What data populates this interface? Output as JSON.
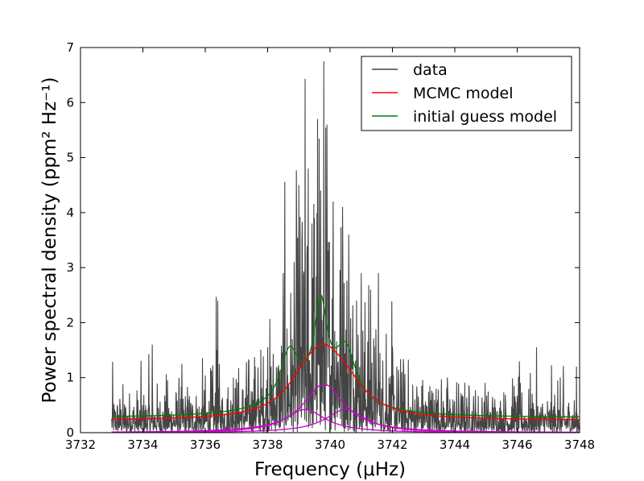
{
  "chart_data": {
    "type": "line",
    "xlabel": "Frequency (μHz)",
    "ylabel": "Power spectral density (ppm² Hz⁻¹)",
    "xlim": [
      3732,
      3748
    ],
    "ylim": [
      0,
      7
    ],
    "xticks": [
      3732,
      3734,
      3736,
      3738,
      3740,
      3742,
      3744,
      3746,
      3748
    ],
    "yticks": [
      0,
      1,
      2,
      3,
      4,
      5,
      6,
      7
    ],
    "data_x_range": [
      3733.0,
      3748.0
    ],
    "grid": false,
    "legend": {
      "placement": "top-right",
      "entries": [
        {
          "label": "data",
          "color": "#444444"
        },
        {
          "label": "MCMC model",
          "color": "#ff0000"
        },
        {
          "label": "initial guess model",
          "color": "#008000"
        }
      ]
    },
    "models": {
      "background": 0.22,
      "mcmc": {
        "color": "#ff0000",
        "modes": [
          {
            "center": 3739.2,
            "height": 0.42,
            "width": 1.6
          },
          {
            "center": 3739.8,
            "height": 0.88,
            "width": 1.6
          },
          {
            "center": 3740.5,
            "height": 0.42,
            "width": 1.6
          }
        ]
      },
      "components": {
        "color": "#cc00cc",
        "modes": [
          {
            "center": 3739.2,
            "height": 0.42,
            "width": 1.6
          },
          {
            "center": 3739.8,
            "height": 0.88,
            "width": 1.6
          },
          {
            "center": 3740.5,
            "height": 0.42,
            "width": 1.6
          }
        ]
      },
      "initial_guess": {
        "color": "#008000",
        "modes": [
          {
            "center": 3738.7,
            "height": 0.9,
            "width": 0.7
          },
          {
            "center": 3739.7,
            "height": 1.6,
            "width": 0.5
          },
          {
            "center": 3740.5,
            "height": 0.95,
            "width": 0.8
          },
          {
            "center": 3739.6,
            "height": 0.35,
            "width": 3.0
          }
        ]
      }
    },
    "data_peaks": [
      {
        "x": 3734.3,
        "y": 1.6
      },
      {
        "x": 3736.35,
        "y": 2.47
      },
      {
        "x": 3736.4,
        "y": 2.4
      },
      {
        "x": 3736.9,
        "y": 1.0
      },
      {
        "x": 3737.6,
        "y": 1.2
      },
      {
        "x": 3738.0,
        "y": 1.55
      },
      {
        "x": 3738.5,
        "y": 2.9
      },
      {
        "x": 3738.85,
        "y": 3.1
      },
      {
        "x": 3739.0,
        "y": 4.5
      },
      {
        "x": 3739.1,
        "y": 3.5
      },
      {
        "x": 3739.2,
        "y": 6.43
      },
      {
        "x": 3739.3,
        "y": 4.8
      },
      {
        "x": 3739.5,
        "y": 3.9
      },
      {
        "x": 3739.6,
        "y": 5.7
      },
      {
        "x": 3739.7,
        "y": 4.4
      },
      {
        "x": 3739.8,
        "y": 6.75
      },
      {
        "x": 3739.9,
        "y": 5.6
      },
      {
        "x": 3740.1,
        "y": 4.2
      },
      {
        "x": 3740.4,
        "y": 4.1
      },
      {
        "x": 3740.6,
        "y": 3.6
      },
      {
        "x": 3740.85,
        "y": 2.4
      },
      {
        "x": 3741.0,
        "y": 2.9
      },
      {
        "x": 3741.3,
        "y": 2.6
      },
      {
        "x": 3741.55,
        "y": 2.9
      },
      {
        "x": 3741.8,
        "y": 1.8
      },
      {
        "x": 3742.3,
        "y": 1.1
      },
      {
        "x": 3743.4,
        "y": 0.8
      },
      {
        "x": 3745.9,
        "y": 0.85
      },
      {
        "x": 3747.3,
        "y": 0.95
      },
      {
        "x": 3747.9,
        "y": 1.2
      }
    ]
  }
}
